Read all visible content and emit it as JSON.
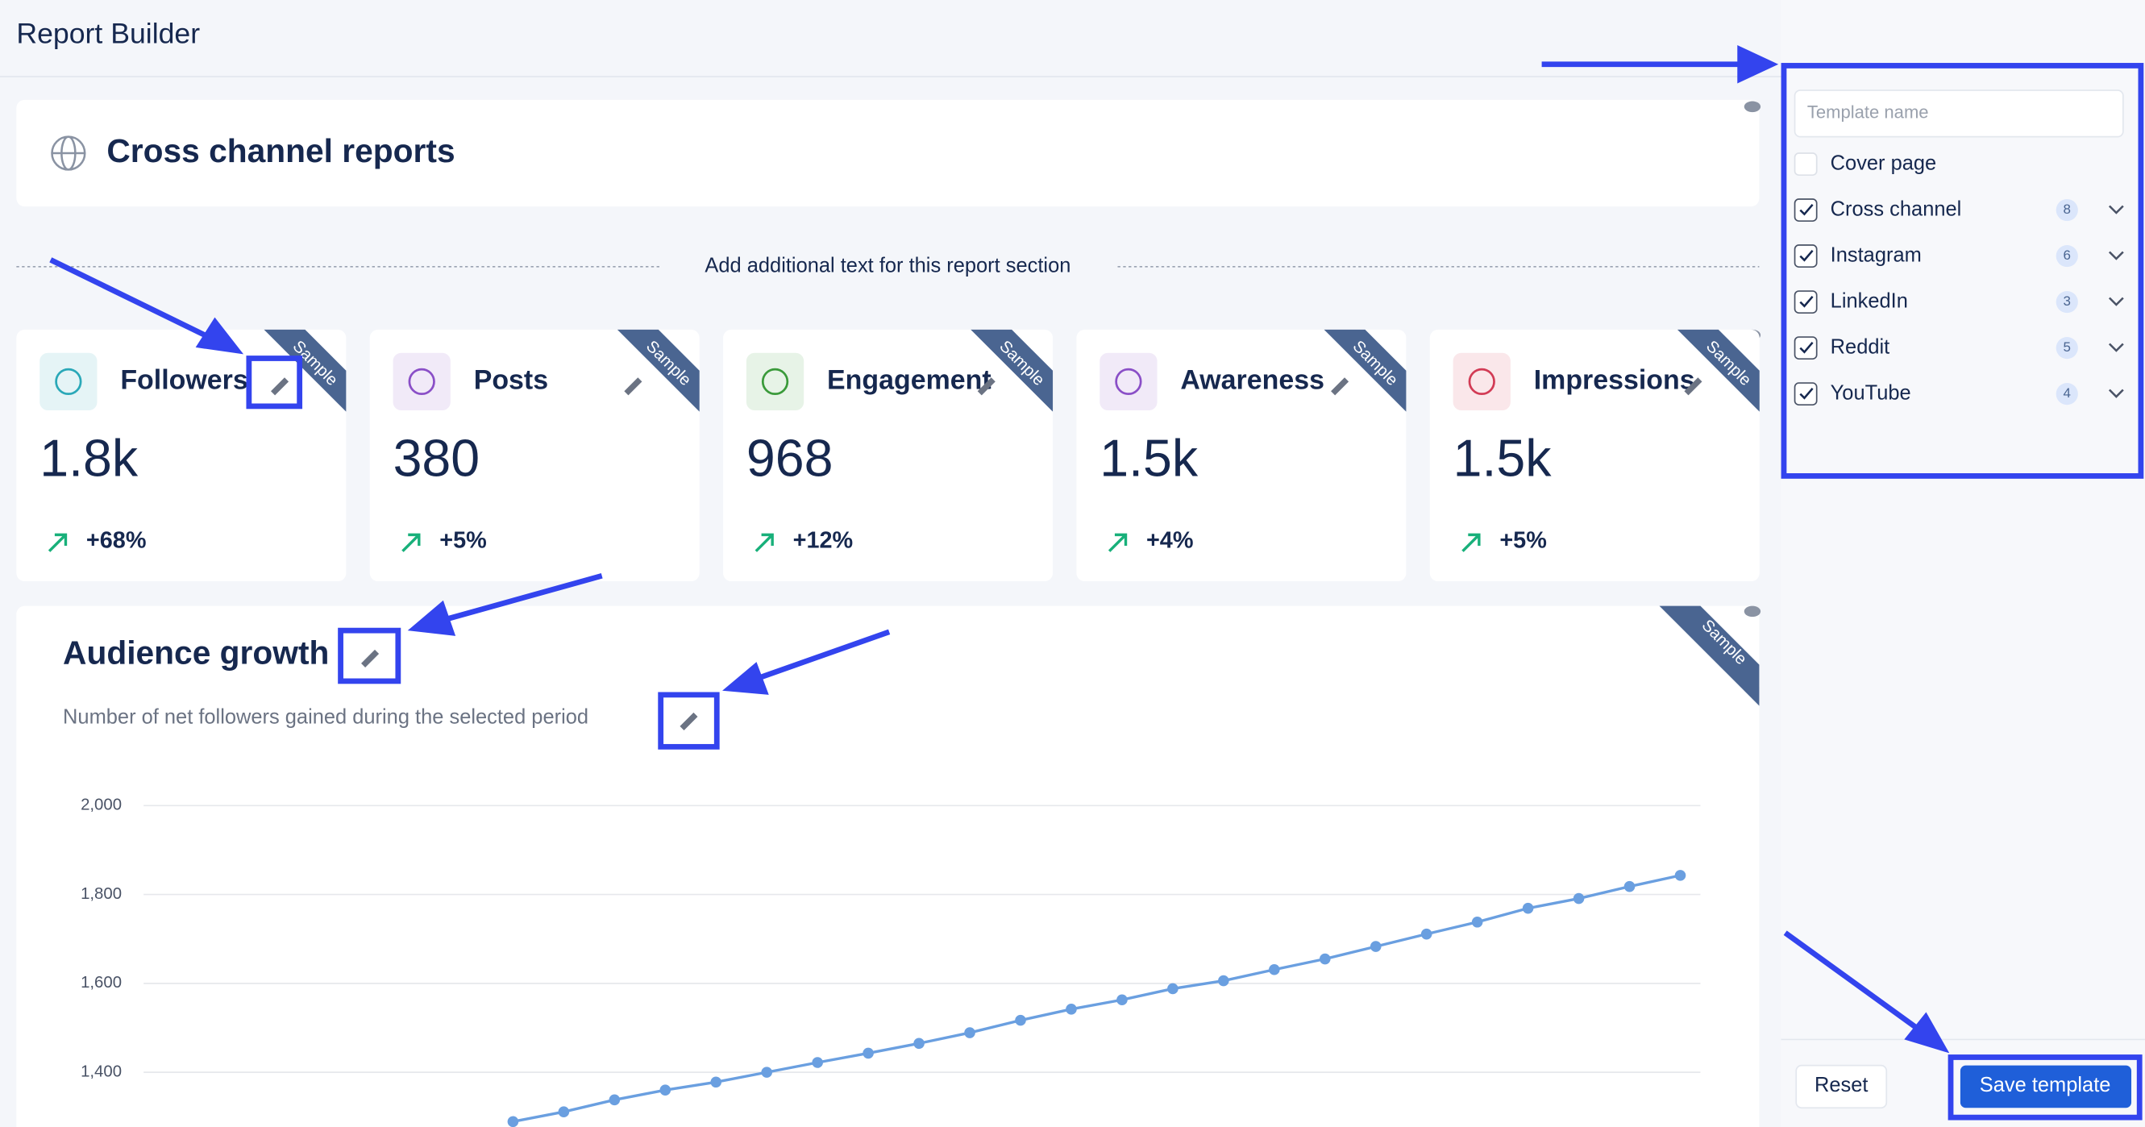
{
  "header": {
    "title": "Report Builder"
  },
  "section": {
    "title": "Cross channel reports",
    "prompt": "Add additional text for this report section"
  },
  "sample_label": "Sample",
  "kpis": [
    {
      "name": "Followers",
      "value": "1.8k",
      "change": "+68%",
      "color": "#2aa8b8"
    },
    {
      "name": "Posts",
      "value": "380",
      "change": "+5%",
      "color": "#8a4fc7"
    },
    {
      "name": "Engagement",
      "value": "968",
      "change": "+12%",
      "color": "#3a9a3a"
    },
    {
      "name": "Awareness",
      "value": "1.5k",
      "change": "+4%",
      "color": "#8a4fc7"
    },
    {
      "name": "Impressions",
      "value": "1.5k",
      "change": "+5%",
      "color": "#d23b55"
    }
  ],
  "chart_data": {
    "type": "line",
    "title": "Audience growth",
    "subtitle": "Number of net followers gained during the selected period",
    "color": "#6a9fe0",
    "values": [
      1289,
      1311,
      1338,
      1360,
      1378,
      1400,
      1422,
      1443,
      1465,
      1489,
      1517,
      1542,
      1563,
      1588,
      1606,
      1631,
      1655,
      1683,
      1711,
      1738,
      1769,
      1791,
      1818,
      1843
    ],
    "ylim": [
      1270,
      2000
    ],
    "yticks": [
      {
        "value": 1400,
        "label": "1,400"
      },
      {
        "value": 1600,
        "label": "1,600"
      },
      {
        "value": 1800,
        "label": "1,800"
      },
      {
        "value": 2000,
        "label": "2,000"
      }
    ],
    "grid": true
  },
  "sidebar": {
    "placeholder": "Template name",
    "items": [
      {
        "label": "Cover page",
        "checked": false
      },
      {
        "label": "Cross channel",
        "checked": true,
        "count": 8
      },
      {
        "label": "Instagram",
        "checked": true,
        "count": 6
      },
      {
        "label": "LinkedIn",
        "checked": true,
        "count": 3
      },
      {
        "label": "Reddit",
        "checked": true,
        "count": 5
      },
      {
        "label": "YouTube",
        "checked": true,
        "count": 4
      }
    ],
    "reset": "Reset",
    "save": "Save template"
  }
}
